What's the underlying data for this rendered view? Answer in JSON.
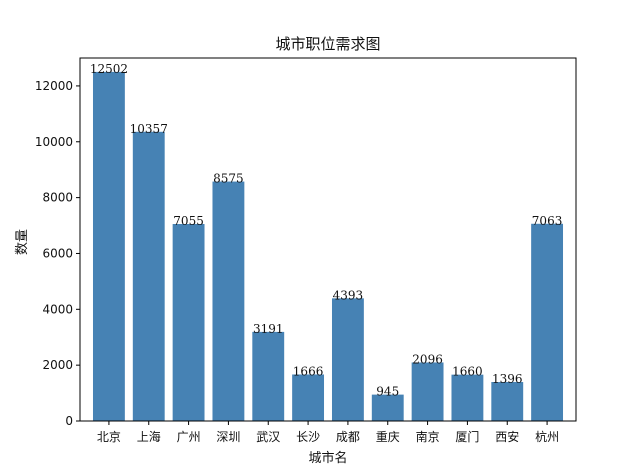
{
  "chart_data": {
    "type": "bar",
    "title": "城市职位需求图",
    "xlabel": "城市名",
    "ylabel": "数量",
    "categories": [
      "北京",
      "上海",
      "广州",
      "深圳",
      "武汉",
      "长沙",
      "成都",
      "重庆",
      "南京",
      "厦门",
      "西安",
      "杭州"
    ],
    "values": [
      12502,
      10357,
      7055,
      8575,
      3191,
      1666,
      4393,
      945,
      2096,
      1660,
      1396,
      7063
    ],
    "ylim": [
      0,
      13000
    ],
    "yticks": [
      0,
      2000,
      4000,
      6000,
      8000,
      10000,
      12000
    ],
    "bar_color": "#4682b4",
    "grid": false,
    "legend": "none"
  }
}
